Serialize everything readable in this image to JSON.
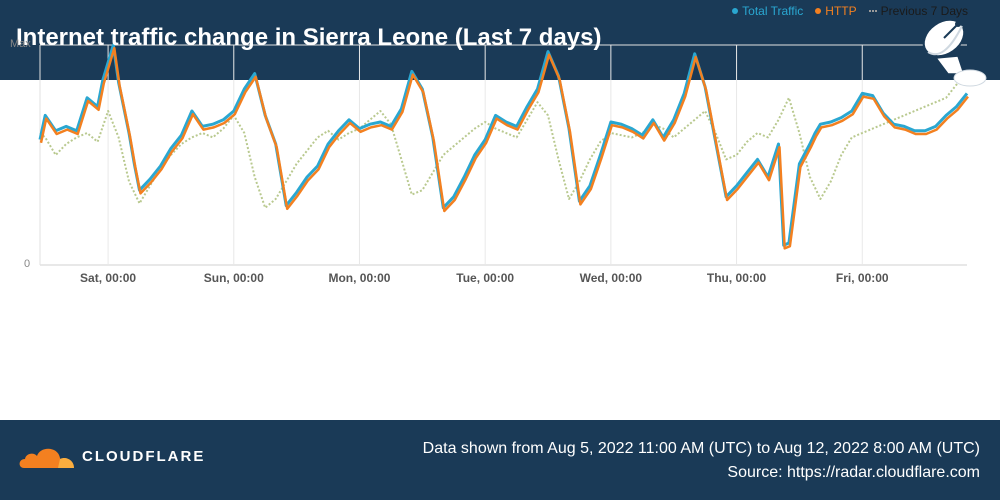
{
  "header": {
    "title": "Internet traffic change in Sierra Leone (Last 7 days)"
  },
  "legend": {
    "items": [
      {
        "label": "Total Traffic",
        "color": "#2aa7d1",
        "marker": "dot"
      },
      {
        "label": "HTTP",
        "color": "#f38020",
        "marker": "dot"
      },
      {
        "label": "Previous 7 Days",
        "color": "#9a9a9a",
        "marker": "dotted-line"
      }
    ]
  },
  "chart_data": {
    "type": "line",
    "title": "Internet traffic change in Sierra Leone (Last 7 days)",
    "x_ticks": [
      "Sat, 00:00",
      "Sun, 00:00",
      "Mon, 00:00",
      "Tue, 00:00",
      "Wed, 00:00",
      "Thu, 00:00",
      "Fri, 00:00"
    ],
    "y_tick_labels": [
      "Max",
      "0"
    ],
    "ylim": [
      0,
      100
    ],
    "x_range_hours": [
      -13,
      164
    ],
    "grid": true,
    "legend_position": "top-right",
    "series": [
      {
        "name": "Total Traffic",
        "color": "#2aa7d1",
        "x": [
          -13,
          -12,
          -10,
          -8,
          -6,
          -4,
          -2,
          -1,
          1,
          2,
          4,
          5,
          6,
          8,
          10,
          12,
          14,
          16,
          18,
          20,
          22,
          24,
          26,
          28,
          30,
          32,
          34,
          36,
          38,
          40,
          42,
          44,
          46,
          48,
          50,
          52,
          54,
          56,
          58,
          60,
          62,
          64,
          66,
          68,
          70,
          72,
          74,
          76,
          78,
          80,
          82,
          84,
          86,
          88,
          90,
          92,
          94,
          96,
          98,
          100,
          102,
          104,
          106,
          108,
          110,
          112,
          114,
          116,
          118,
          120,
          122,
          124,
          126,
          128,
          129,
          130,
          132,
          134,
          135,
          136,
          138,
          140,
          142,
          144,
          146,
          148,
          150,
          152,
          154,
          156,
          158,
          160,
          162,
          164
        ],
        "y": [
          57,
          68,
          61,
          63,
          61,
          76,
          72,
          84,
          100,
          83,
          60,
          46,
          34,
          39,
          45,
          53,
          59,
          70,
          63,
          64,
          66,
          70,
          80,
          87,
          68,
          55,
          27,
          33,
          40,
          45,
          55,
          61,
          66,
          62,
          64,
          65,
          63,
          71,
          88,
          80,
          58,
          26,
          31,
          40,
          50,
          57,
          68,
          65,
          63,
          72,
          80,
          97,
          86,
          62,
          29,
          36,
          50,
          65,
          64,
          62,
          59,
          66,
          58,
          66,
          78,
          96,
          81,
          56,
          31,
          36,
          42,
          48,
          40,
          55,
          9,
          10,
          46,
          55,
          60,
          64,
          65,
          67,
          70,
          78,
          77,
          69,
          64,
          63,
          61,
          61,
          63,
          68,
          72,
          78
        ]
      },
      {
        "name": "HTTP",
        "color": "#f38020",
        "x": [
          -13,
          -12,
          -10,
          -8,
          -6,
          -4,
          -2,
          -1,
          1,
          2,
          4,
          5,
          6,
          8,
          10,
          12,
          14,
          16,
          18,
          20,
          22,
          24,
          26,
          28,
          30,
          32,
          34,
          36,
          38,
          40,
          42,
          44,
          46,
          48,
          50,
          52,
          54,
          56,
          58,
          60,
          62,
          64,
          66,
          68,
          70,
          72,
          74,
          76,
          78,
          80,
          82,
          84,
          86,
          88,
          90,
          92,
          94,
          96,
          98,
          100,
          102,
          104,
          106,
          108,
          110,
          112,
          114,
          116,
          118,
          120,
          122,
          124,
          126,
          128,
          129,
          130,
          132,
          134,
          135,
          136,
          138,
          140,
          142,
          144,
          146,
          148,
          150,
          152,
          154,
          156,
          158,
          160,
          162,
          164
        ],
        "y": [
          56,
          67,
          60,
          62,
          60,
          75,
          71,
          83,
          99,
          82,
          59,
          45,
          33,
          38,
          44,
          52,
          58,
          69,
          62,
          63,
          65,
          69,
          79,
          86,
          67,
          54,
          26,
          32,
          39,
          44,
          54,
          60,
          65,
          61,
          63,
          64,
          62,
          70,
          87,
          79,
          57,
          25,
          30,
          39,
          49,
          56,
          67,
          64,
          62,
          71,
          79,
          96,
          85,
          61,
          28,
          35,
          49,
          64,
          63,
          61,
          58,
          65,
          57,
          65,
          77,
          95,
          80,
          55,
          30,
          35,
          41,
          47,
          39,
          54,
          8,
          9,
          45,
          54,
          59,
          63,
          64,
          66,
          69,
          77,
          76,
          68,
          63,
          62,
          60,
          60,
          62,
          67,
          71,
          77
        ]
      },
      {
        "name": "Previous 7 Days",
        "color": "#9a9a9a",
        "x": [
          -13,
          -12,
          -10,
          -8,
          -6,
          -4,
          -2,
          0,
          2,
          4,
          6,
          8,
          10,
          12,
          14,
          16,
          18,
          20,
          22,
          24,
          26,
          28,
          30,
          32,
          34,
          36,
          38,
          40,
          42,
          44,
          46,
          48,
          50,
          52,
          54,
          56,
          58,
          60,
          62,
          64,
          66,
          68,
          70,
          72,
          74,
          76,
          78,
          80,
          82,
          84,
          86,
          88,
          90,
          92,
          94,
          96,
          98,
          100,
          102,
          104,
          106,
          108,
          110,
          112,
          114,
          116,
          118,
          120,
          122,
          124,
          126,
          128,
          130,
          132,
          134,
          136,
          138,
          140,
          142,
          144,
          146,
          148,
          150,
          152,
          154,
          156,
          158,
          160,
          162,
          164
        ],
        "y": [
          60,
          58,
          50,
          55,
          58,
          60,
          56,
          70,
          58,
          38,
          28,
          36,
          44,
          50,
          55,
          58,
          60,
          58,
          62,
          68,
          60,
          40,
          26,
          30,
          38,
          46,
          52,
          58,
          61,
          57,
          60,
          62,
          66,
          70,
          64,
          48,
          32,
          34,
          42,
          50,
          54,
          58,
          62,
          65,
          62,
          60,
          58,
          66,
          74,
          68,
          48,
          30,
          38,
          48,
          56,
          60,
          59,
          58,
          60,
          64,
          62,
          58,
          62,
          66,
          70,
          60,
          48,
          50,
          56,
          60,
          58,
          66,
          76,
          60,
          40,
          30,
          38,
          50,
          58,
          60,
          62,
          64,
          66,
          68,
          70,
          72,
          74,
          76,
          82,
          88
        ]
      }
    ]
  },
  "footer": {
    "brand": "CLOUDFLARE",
    "data_range": "Data shown from Aug 5, 2022 11:00 AM (UTC) to Aug 12, 2022 8:00 AM (UTC)",
    "source": "Source: https://radar.cloudflare.com"
  }
}
